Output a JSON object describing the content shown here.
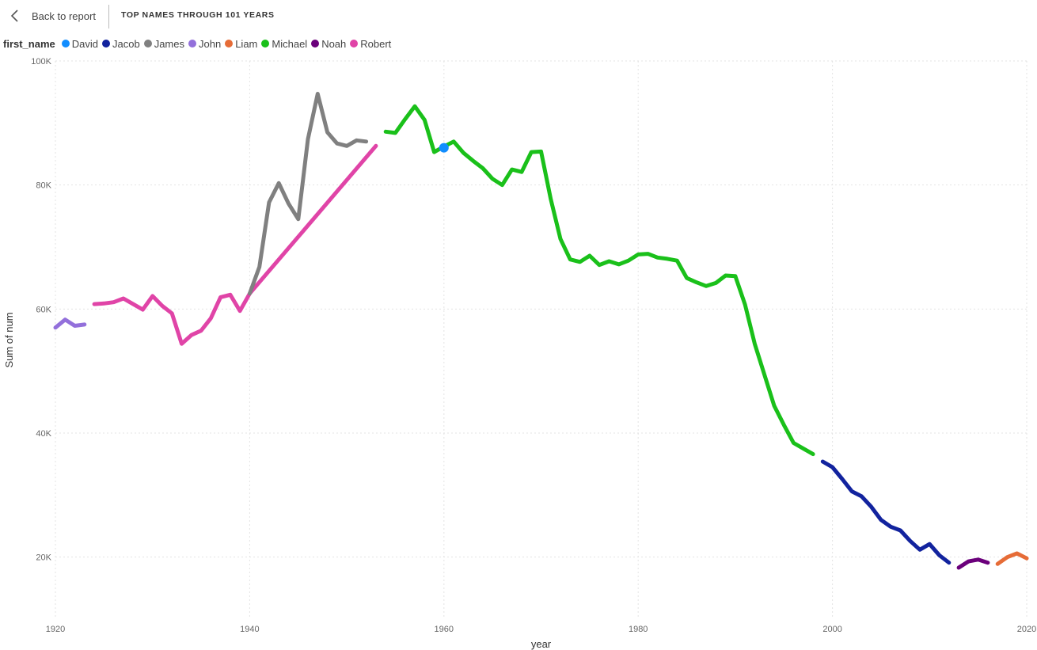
{
  "header": {
    "back_label": "Back to report",
    "page_title": "TOP NAMES THROUGH 101 YEARS"
  },
  "legend": {
    "title": "first_name",
    "items": [
      {
        "name": "David",
        "color": "#118DFF"
      },
      {
        "name": "Jacob",
        "color": "#12239E"
      },
      {
        "name": "James",
        "color": "#808080"
      },
      {
        "name": "John",
        "color": "#9370DB"
      },
      {
        "name": "Liam",
        "color": "#E66C37"
      },
      {
        "name": "Michael",
        "color": "#1AC01A"
      },
      {
        "name": "Noah",
        "color": "#6B007B"
      },
      {
        "name": "Robert",
        "color": "#E044A7"
      }
    ]
  },
  "chart_data": {
    "type": "line",
    "xlabel": "year",
    "ylabel": "Sum of num",
    "xlim": [
      1920,
      2020
    ],
    "ylim": [
      10000,
      100000
    ],
    "xticks": [
      {
        "value": 1920,
        "label": "1920"
      },
      {
        "value": 1940,
        "label": "1940"
      },
      {
        "value": 1960,
        "label": "1960"
      },
      {
        "value": 1980,
        "label": "1980"
      },
      {
        "value": 2000,
        "label": "2000"
      },
      {
        "value": 2020,
        "label": "2020"
      }
    ],
    "yticks": [
      {
        "value": 20000,
        "label": "20K"
      },
      {
        "value": 40000,
        "label": "40K"
      },
      {
        "value": 60000,
        "label": "60K"
      },
      {
        "value": 80000,
        "label": "80K"
      },
      {
        "value": 100000,
        "label": "100K"
      }
    ],
    "grid": true,
    "series": [
      {
        "name": "John",
        "color": "#9370DB",
        "x": [
          1920,
          1921,
          1922,
          1923
        ],
        "values": [
          57000,
          58300,
          57300,
          57500
        ]
      },
      {
        "name": "Robert",
        "color": "#E044A7",
        "x": [
          1924,
          1925,
          1926,
          1927,
          1928,
          1929,
          1930,
          1931,
          1932,
          1933,
          1934,
          1935,
          1936,
          1937,
          1938,
          1939,
          1940,
          1953
        ],
        "values": [
          60800,
          60900,
          61100,
          61700,
          60800,
          59900,
          62100,
          60500,
          59300,
          54400,
          55800,
          56500,
          58500,
          61900,
          62300,
          59700,
          62500,
          86300
        ]
      },
      {
        "name": "James",
        "color": "#808080",
        "x": [
          1940,
          1941,
          1942,
          1943,
          1944,
          1945,
          1946,
          1947,
          1948,
          1949,
          1950,
          1951,
          1952
        ],
        "values": [
          62500,
          66800,
          77200,
          80300,
          77000,
          74500,
          87400,
          94700,
          88500,
          86700,
          86300,
          87200,
          87000
        ]
      },
      {
        "name": "Michael",
        "color": "#1AC01A",
        "x": [
          1954,
          1955,
          1956,
          1957,
          1958,
          1959,
          1960,
          1961,
          1962,
          1963,
          1964,
          1965,
          1966,
          1967,
          1968,
          1969,
          1970,
          1971,
          1972,
          1973,
          1974,
          1975,
          1976,
          1977,
          1978,
          1979,
          1980,
          1981,
          1982,
          1983,
          1984,
          1985,
          1986,
          1987,
          1988,
          1989,
          1990,
          1991,
          1992,
          1993,
          1994,
          1995,
          1996,
          1997,
          1998
        ],
        "values": [
          88600,
          88400,
          90600,
          92700,
          90500,
          85300,
          86200,
          87000,
          85200,
          83900,
          82700,
          81000,
          80000,
          82500,
          82100,
          85300,
          85400,
          77700,
          71300,
          68000,
          67600,
          68600,
          67100,
          67700,
          67200,
          67800,
          68800,
          68900,
          68300,
          68100,
          67800,
          65000,
          64300,
          63700,
          64200,
          65400,
          65300,
          60700,
          54400,
          49400,
          44400,
          41300,
          38400,
          37500,
          36600
        ]
      },
      {
        "name": "Jacob",
        "color": "#12239E",
        "x": [
          1999,
          2000,
          2001,
          2002,
          2003,
          2004,
          2005,
          2006,
          2007,
          2008,
          2009,
          2010,
          2011,
          2012
        ],
        "values": [
          35400,
          34500,
          32600,
          30600,
          29800,
          28100,
          26000,
          24900,
          24300,
          22600,
          21200,
          22100,
          20300,
          19100
        ]
      },
      {
        "name": "Noah",
        "color": "#6B007B",
        "x": [
          2013,
          2014,
          2015,
          2016
        ],
        "values": [
          18300,
          19300,
          19600,
          19100
        ]
      },
      {
        "name": "Liam",
        "color": "#E66C37",
        "x": [
          2017,
          2018,
          2019,
          2020
        ],
        "values": [
          18900,
          20000,
          20600,
          19800
        ]
      },
      {
        "name": "David",
        "color": "#118DFF",
        "x": [
          1960
        ],
        "values": [
          86000
        ]
      }
    ]
  }
}
